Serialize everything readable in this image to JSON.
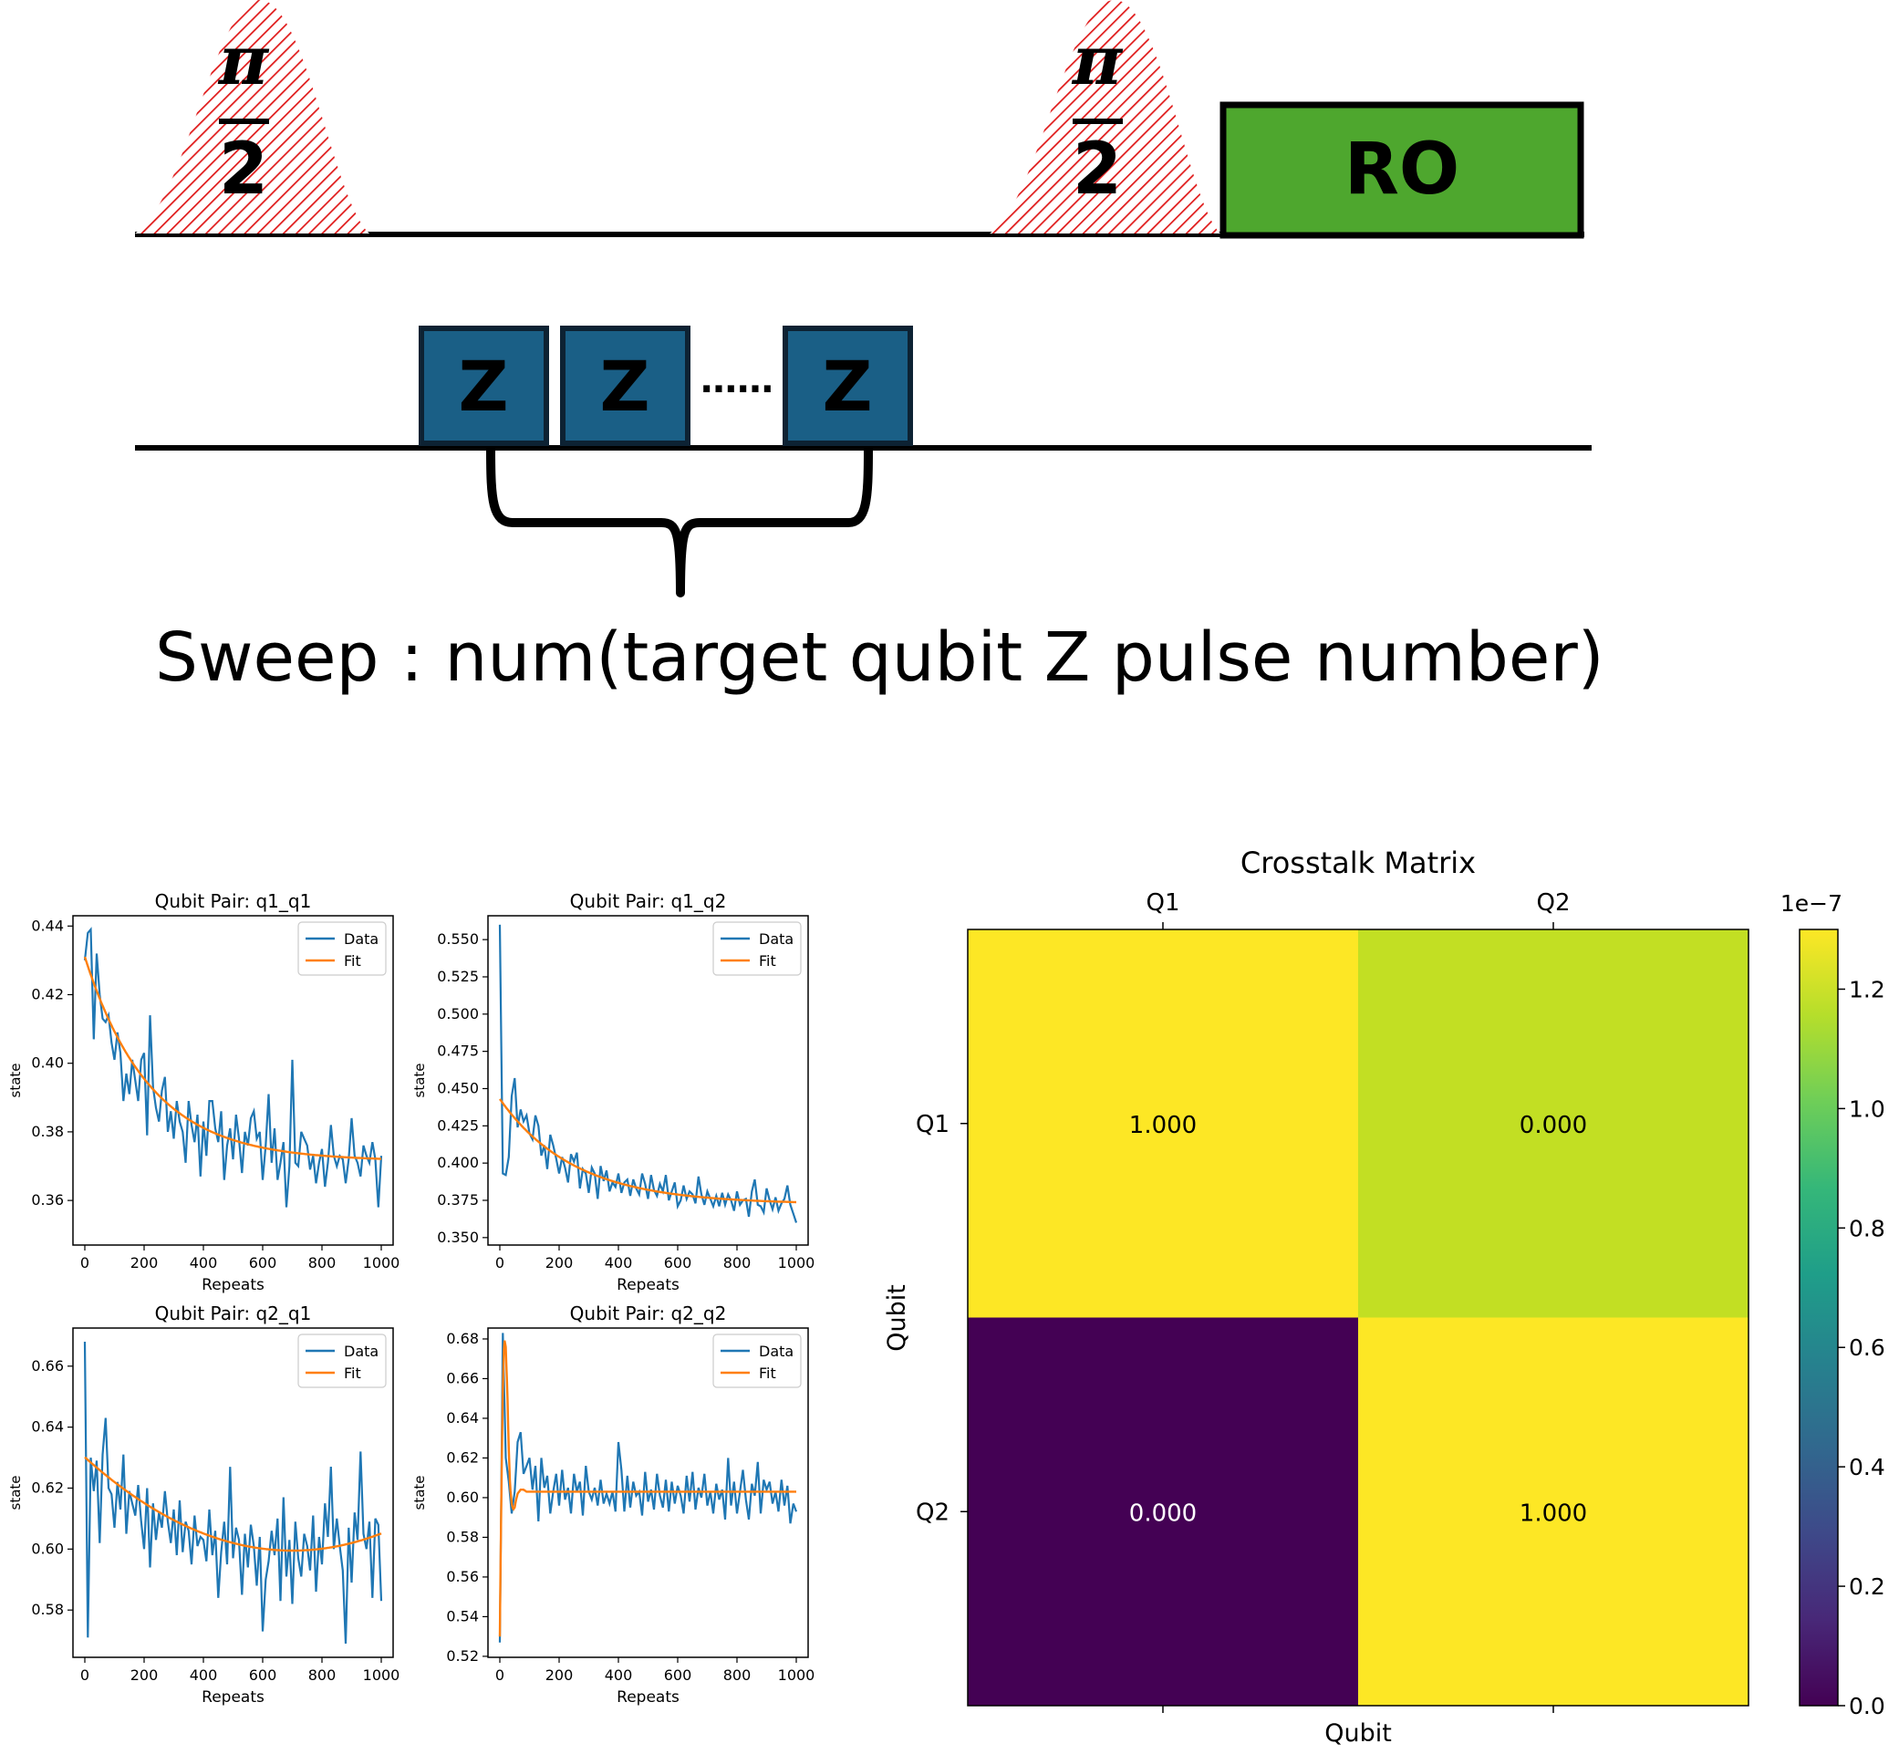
{
  "sequence": {
    "pulse_label_top": "π",
    "pulse_label_bottom": "2",
    "readout_label": "RO",
    "z_label": "Z",
    "ellipsis": "……",
    "sweep_text": "Sweep : num(target qubit Z pulse number)",
    "colors": {
      "pulse_hatch": "#e01b1b",
      "readout": "#4ea72e",
      "z_box": "#1a5f86",
      "z_border": "#0d2233"
    }
  },
  "chart_data": [
    {
      "type": "line",
      "title": "Qubit Pair: q1_q1",
      "xlabel": "Repeats",
      "ylabel": "state",
      "xlim": [
        -40,
        1040
      ],
      "ylim": [
        0.347,
        0.443
      ],
      "xticks": [
        0,
        200,
        400,
        600,
        800,
        1000
      ],
      "yticks": [
        0.36,
        0.38,
        0.4,
        0.42,
        0.44
      ],
      "ytick_labels": [
        "0.36",
        "0.38",
        "0.40",
        "0.42",
        "0.44"
      ],
      "legend": [
        "Data",
        "Fit"
      ],
      "legend_position": "top-right",
      "fit": {
        "model": "exp",
        "a": 0.0595,
        "tau": 220,
        "c": 0.3715
      },
      "series": [
        {
          "name": "Data",
          "color": "#1f77b4",
          "x_step": 10,
          "y": [
            0.43,
            0.438,
            0.439,
            0.407,
            0.432,
            0.42,
            0.413,
            0.412,
            0.414,
            0.406,
            0.401,
            0.409,
            0.403,
            0.389,
            0.397,
            0.391,
            0.401,
            0.395,
            0.389,
            0.401,
            0.403,
            0.379,
            0.414,
            0.393,
            0.387,
            0.383,
            0.392,
            0.396,
            0.38,
            0.386,
            0.378,
            0.389,
            0.383,
            0.38,
            0.371,
            0.389,
            0.382,
            0.377,
            0.385,
            0.367,
            0.383,
            0.373,
            0.389,
            0.389,
            0.381,
            0.377,
            0.386,
            0.366,
            0.376,
            0.381,
            0.372,
            0.385,
            0.378,
            0.368,
            0.38,
            0.376,
            0.384,
            0.386,
            0.378,
            0.38,
            0.366,
            0.376,
            0.391,
            0.371,
            0.381,
            0.366,
            0.371,
            0.377,
            0.358,
            0.37,
            0.401,
            0.371,
            0.37,
            0.38,
            0.378,
            0.376,
            0.369,
            0.373,
            0.365,
            0.371,
            0.375,
            0.364,
            0.371,
            0.382,
            0.373,
            0.37,
            0.373,
            0.372,
            0.365,
            0.372,
            0.384,
            0.373,
            0.371,
            0.367,
            0.376,
            0.373,
            0.371,
            0.377,
            0.372,
            0.358,
            0.373
          ]
        },
        {
          "name": "Fit",
          "color": "#ff7f0e"
        }
      ]
    },
    {
      "type": "line",
      "title": "Qubit Pair: q1_q2",
      "xlabel": "Repeats",
      "ylabel": "state",
      "xlim": [
        -40,
        1040
      ],
      "ylim": [
        0.345,
        0.566
      ],
      "xticks": [
        0,
        200,
        400,
        600,
        800,
        1000
      ],
      "yticks": [
        0.35,
        0.375,
        0.4,
        0.425,
        0.45,
        0.475,
        0.5,
        0.525,
        0.55
      ],
      "ytick_labels": [
        "0.350",
        "0.375",
        "0.400",
        "0.425",
        "0.450",
        "0.475",
        "0.500",
        "0.525",
        "0.550"
      ],
      "legend": [
        "Data",
        "Fit"
      ],
      "legend_position": "top-right",
      "fit": {
        "model": "exp",
        "a": 0.0705,
        "tau": 250,
        "c": 0.3725
      },
      "series": [
        {
          "name": "Data",
          "color": "#1f77b4",
          "x_step": 10,
          "y": [
            0.56,
            0.393,
            0.392,
            0.404,
            0.445,
            0.457,
            0.424,
            0.436,
            0.428,
            0.432,
            0.42,
            0.416,
            0.432,
            0.425,
            0.405,
            0.412,
            0.396,
            0.419,
            0.412,
            0.403,
            0.393,
            0.404,
            0.397,
            0.387,
            0.406,
            0.401,
            0.407,
            0.383,
            0.396,
            0.393,
            0.38,
            0.397,
            0.393,
            0.376,
            0.398,
            0.388,
            0.395,
            0.381,
            0.387,
            0.384,
            0.393,
            0.38,
            0.387,
            0.389,
            0.378,
            0.389,
            0.383,
            0.379,
            0.393,
            0.386,
            0.376,
            0.392,
            0.382,
            0.378,
            0.386,
            0.381,
            0.392,
            0.375,
            0.381,
            0.387,
            0.371,
            0.375,
            0.385,
            0.376,
            0.381,
            0.379,
            0.373,
            0.391,
            0.379,
            0.372,
            0.381,
            0.376,
            0.371,
            0.378,
            0.371,
            0.38,
            0.372,
            0.379,
            0.375,
            0.368,
            0.381,
            0.372,
            0.375,
            0.376,
            0.364,
            0.381,
            0.389,
            0.372,
            0.371,
            0.367,
            0.383,
            0.375,
            0.369,
            0.377,
            0.368,
            0.373,
            0.376,
            0.385,
            0.372,
            0.366,
            0.36
          ]
        },
        {
          "name": "Fit",
          "color": "#ff7f0e"
        }
      ]
    },
    {
      "type": "line",
      "title": "Qubit Pair: q2_q1",
      "xlabel": "Repeats",
      "ylabel": "state",
      "xlim": [
        -40,
        1040
      ],
      "ylim": [
        0.5645,
        0.6725
      ],
      "xticks": [
        0,
        200,
        400,
        600,
        800,
        1000
      ],
      "yticks": [
        0.58,
        0.6,
        0.62,
        0.64,
        0.66
      ],
      "ytick_labels": [
        "0.58",
        "0.60",
        "0.62",
        "0.64",
        "0.66"
      ],
      "legend": [
        "Data",
        "Fit"
      ],
      "legend_position": "top-right",
      "fit": {
        "model": "quad",
        "a": 6.25e-08,
        "x0": 700,
        "c": 0.5995
      },
      "series": [
        {
          "name": "Data",
          "color": "#1f77b4",
          "x_step": 10,
          "y": [
            0.668,
            0.571,
            0.63,
            0.619,
            0.629,
            0.602,
            0.631,
            0.643,
            0.62,
            0.618,
            0.607,
            0.622,
            0.613,
            0.631,
            0.605,
            0.619,
            0.615,
            0.611,
            0.621,
            0.609,
            0.6,
            0.62,
            0.594,
            0.615,
            0.603,
            0.612,
            0.607,
            0.619,
            0.609,
            0.602,
            0.613,
            0.598,
            0.616,
            0.599,
            0.609,
            0.606,
            0.595,
            0.611,
            0.601,
            0.604,
            0.603,
            0.596,
            0.613,
            0.598,
            0.606,
            0.584,
            0.599,
            0.609,
            0.595,
            0.627,
            0.597,
            0.607,
            0.603,
            0.585,
            0.605,
            0.594,
            0.608,
            0.601,
            0.588,
            0.604,
            0.573,
            0.59,
            0.596,
            0.606,
            0.598,
            0.61,
            0.583,
            0.617,
            0.591,
            0.603,
            0.582,
            0.609,
            0.597,
            0.591,
            0.605,
            0.601,
            0.593,
            0.611,
            0.586,
            0.604,
            0.595,
            0.615,
            0.604,
            0.627,
            0.6,
            0.61,
            0.601,
            0.593,
            0.569,
            0.607,
            0.589,
            0.612,
            0.603,
            0.632,
            0.605,
            0.6,
            0.609,
            0.584,
            0.61,
            0.608,
            0.583
          ]
        },
        {
          "name": "Fit",
          "color": "#ff7f0e"
        }
      ]
    },
    {
      "type": "line",
      "title": "Qubit Pair: q2_q2",
      "xlabel": "Repeats",
      "ylabel": "state",
      "xlim": [
        -40,
        1040
      ],
      "ylim": [
        0.5195,
        0.6855
      ],
      "xticks": [
        0,
        200,
        400,
        600,
        800,
        1000
      ],
      "yticks": [
        0.52,
        0.54,
        0.56,
        0.58,
        0.6,
        0.62,
        0.64,
        0.66,
        0.68
      ],
      "ytick_labels": [
        "0.52",
        "0.54",
        "0.56",
        "0.58",
        "0.60",
        "0.62",
        "0.64",
        "0.66",
        "0.68"
      ],
      "legend": [
        "Data",
        "Fit"
      ],
      "legend_position": "top-right",
      "fit": {
        "model": "points",
        "x": [
          0,
          5,
          10,
          15,
          20,
          25,
          30,
          35,
          40,
          45,
          50,
          55,
          60,
          70,
          80,
          90,
          100,
          120,
          140,
          1000
        ],
        "y": [
          0.53,
          0.6,
          0.655,
          0.68,
          0.676,
          0.655,
          0.625,
          0.605,
          0.597,
          0.594,
          0.595,
          0.599,
          0.602,
          0.604,
          0.604,
          0.603,
          0.603,
          0.603,
          0.603,
          0.603
        ]
      },
      "series": [
        {
          "name": "Data",
          "color": "#1f77b4",
          "x_step": 10,
          "y": [
            0.527,
            0.683,
            0.62,
            0.608,
            0.592,
            0.603,
            0.628,
            0.633,
            0.612,
            0.616,
            0.62,
            0.604,
            0.616,
            0.588,
            0.62,
            0.605,
            0.611,
            0.592,
            0.603,
            0.612,
            0.596,
            0.614,
            0.599,
            0.605,
            0.592,
            0.612,
            0.603,
            0.608,
            0.591,
            0.616,
            0.603,
            0.599,
            0.605,
            0.596,
            0.609,
            0.597,
            0.602,
            0.597,
            0.603,
            0.593,
            0.628,
            0.614,
            0.593,
            0.611,
            0.595,
            0.608,
            0.601,
            0.603,
            0.591,
            0.613,
            0.598,
            0.604,
            0.594,
            0.612,
            0.601,
            0.595,
            0.609,
            0.593,
            0.608,
            0.597,
            0.606,
            0.601,
            0.592,
            0.611,
            0.598,
            0.613,
            0.594,
            0.605,
            0.6,
            0.612,
            0.596,
            0.603,
            0.592,
            0.607,
            0.599,
            0.604,
            0.589,
            0.62,
            0.596,
            0.608,
            0.592,
            0.603,
            0.614,
            0.599,
            0.589,
            0.607,
            0.601,
            0.618,
            0.592,
            0.609,
            0.604,
            0.608,
            0.597,
            0.603,
            0.593,
            0.609,
            0.596,
            0.606,
            0.587,
            0.597,
            0.593
          ]
        },
        {
          "name": "Fit",
          "color": "#ff7f0e"
        }
      ]
    },
    {
      "type": "heatmap",
      "title": "Crosstalk Matrix",
      "xlabel": "Qubit",
      "ylabel": "Qubit",
      "x_categories": [
        "Q1",
        "Q2"
      ],
      "y_categories": [
        "Q1",
        "Q2"
      ],
      "cell_labels": [
        [
          "1.000",
          "0.000"
        ],
        [
          "0.000",
          "1.000"
        ]
      ],
      "cell_colors": [
        [
          "#fde725",
          "#c2df23"
        ],
        [
          "#440154",
          "#fde725"
        ]
      ],
      "colorbar": {
        "offset_text": "1e−7",
        "range": [
          0,
          1.3
        ],
        "ticks": [
          0.0,
          0.2,
          0.4,
          0.6,
          0.8,
          1.0,
          1.2
        ],
        "tick_labels": [
          "0.0",
          "0.2",
          "0.4",
          "0.6",
          "0.8",
          "1.0",
          "1.2"
        ],
        "colormap_stops": [
          "#440154",
          "#482878",
          "#3e4989",
          "#31688e",
          "#26828e",
          "#1f9e89",
          "#35b779",
          "#6ece58",
          "#b5de2b",
          "#fde725"
        ]
      }
    }
  ]
}
